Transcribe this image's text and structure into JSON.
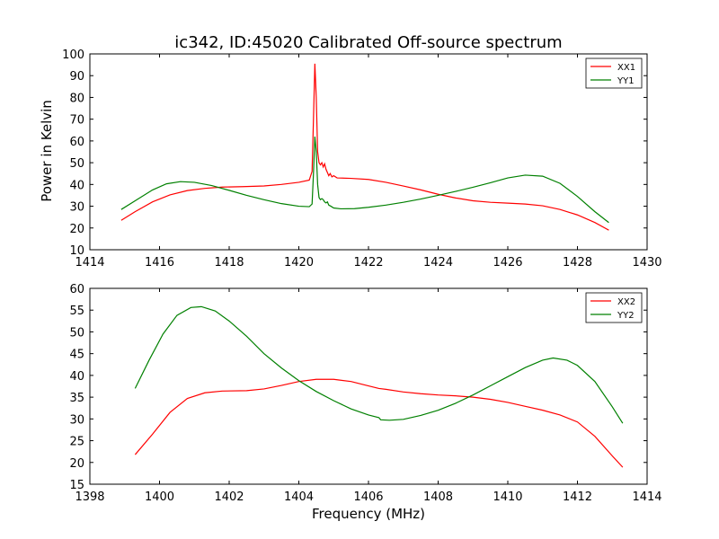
{
  "chart_data": [
    {
      "type": "line",
      "title": "ic342, ID:45020 Calibrated Off-source spectrum",
      "xlabel": "",
      "ylabel": "Power in Kelvin",
      "xlim": [
        1414,
        1430
      ],
      "ylim": [
        10,
        100
      ],
      "xticks": [
        "1414",
        "1416",
        "1418",
        "1420",
        "1422",
        "1424",
        "1426",
        "1428",
        "1430"
      ],
      "yticks": [
        "10",
        "20",
        "30",
        "40",
        "50",
        "60",
        "70",
        "80",
        "90",
        "100"
      ],
      "legend_position": "top-right",
      "grid": false,
      "series": [
        {
          "name": "XX1",
          "color": "#ff0000",
          "points": [
            [
              1414.9,
              23.5
            ],
            [
              1415.3,
              27.5
            ],
            [
              1415.8,
              32
            ],
            [
              1416.3,
              35.2
            ],
            [
              1416.8,
              37.2
            ],
            [
              1417.3,
              38.2
            ],
            [
              1417.8,
              38.8
            ],
            [
              1418.4,
              39.0
            ],
            [
              1419.0,
              39.3
            ],
            [
              1419.5,
              40.0
            ],
            [
              1420.0,
              41.0
            ],
            [
              1420.3,
              42.0
            ],
            [
              1420.38,
              46
            ],
            [
              1420.42,
              70
            ],
            [
              1420.46,
              95.5
            ],
            [
              1420.5,
              80
            ],
            [
              1420.54,
              55
            ],
            [
              1420.58,
              50
            ],
            [
              1420.62,
              49
            ],
            [
              1420.66,
              50
            ],
            [
              1420.7,
              48
            ],
            [
              1420.74,
              49.5
            ],
            [
              1420.78,
              47
            ],
            [
              1420.82,
              45.5
            ],
            [
              1420.86,
              44
            ],
            [
              1420.9,
              45
            ],
            [
              1420.95,
              43.5
            ],
            [
              1421.0,
              44
            ],
            [
              1421.1,
              43
            ],
            [
              1421.5,
              42.8
            ],
            [
              1422.0,
              42.3
            ],
            [
              1422.5,
              41
            ],
            [
              1423.0,
              39.3
            ],
            [
              1423.5,
              37.5
            ],
            [
              1424.0,
              35.5
            ],
            [
              1424.5,
              33.8
            ],
            [
              1425.0,
              32.5
            ],
            [
              1425.5,
              31.8
            ],
            [
              1426.0,
              31.4
            ],
            [
              1426.5,
              31.0
            ],
            [
              1427.0,
              30.2
            ],
            [
              1427.5,
              28.5
            ],
            [
              1428.0,
              26.0
            ],
            [
              1428.5,
              22.5
            ],
            [
              1428.9,
              19.0
            ]
          ]
        },
        {
          "name": "YY1",
          "color": "#008000",
          "points": [
            [
              1414.9,
              28.5
            ],
            [
              1415.3,
              32.5
            ],
            [
              1415.8,
              37.5
            ],
            [
              1416.2,
              40.3
            ],
            [
              1416.6,
              41.3
            ],
            [
              1417.0,
              41.0
            ],
            [
              1417.5,
              39.5
            ],
            [
              1418.0,
              37.3
            ],
            [
              1418.5,
              35
            ],
            [
              1419.0,
              33
            ],
            [
              1419.5,
              31.2
            ],
            [
              1420.0,
              30.0
            ],
            [
              1420.3,
              29.8
            ],
            [
              1420.38,
              31
            ],
            [
              1420.42,
              45
            ],
            [
              1420.46,
              62
            ],
            [
              1420.5,
              55
            ],
            [
              1420.54,
              40
            ],
            [
              1420.58,
              34
            ],
            [
              1420.62,
              33
            ],
            [
              1420.66,
              33.5
            ],
            [
              1420.7,
              33
            ],
            [
              1420.74,
              32
            ],
            [
              1420.78,
              31.5
            ],
            [
              1420.82,
              32
            ],
            [
              1420.86,
              30.5
            ],
            [
              1420.92,
              30
            ],
            [
              1421.0,
              29.2
            ],
            [
              1421.2,
              28.8
            ],
            [
              1421.6,
              28.9
            ],
            [
              1422.0,
              29.5
            ],
            [
              1422.5,
              30.5
            ],
            [
              1423.0,
              31.8
            ],
            [
              1423.5,
              33.3
            ],
            [
              1424.0,
              35.0
            ],
            [
              1424.5,
              36.8
            ],
            [
              1425.0,
              38.7
            ],
            [
              1425.5,
              40.8
            ],
            [
              1426.0,
              43.0
            ],
            [
              1426.5,
              44.3
            ],
            [
              1427.0,
              43.8
            ],
            [
              1427.5,
              40.5
            ],
            [
              1428.0,
              34.5
            ],
            [
              1428.5,
              27.5
            ],
            [
              1428.9,
              22.5
            ]
          ]
        }
      ]
    },
    {
      "type": "line",
      "title": "",
      "xlabel": "Frequency (MHz)",
      "ylabel": "",
      "xlim": [
        1398,
        1414
      ],
      "ylim": [
        15,
        60
      ],
      "xticks": [
        "1398",
        "1400",
        "1402",
        "1404",
        "1406",
        "1408",
        "1410",
        "1412",
        "1414"
      ],
      "yticks": [
        "15",
        "20",
        "25",
        "30",
        "35",
        "40",
        "45",
        "50",
        "55",
        "60"
      ],
      "legend_position": "top-right",
      "grid": false,
      "series": [
        {
          "name": "XX2",
          "color": "#ff0000",
          "points": [
            [
              1399.3,
              21.8
            ],
            [
              1399.8,
              26.5
            ],
            [
              1400.3,
              31.5
            ],
            [
              1400.8,
              34.7
            ],
            [
              1401.3,
              36.0
            ],
            [
              1401.8,
              36.4
            ],
            [
              1402.5,
              36.5
            ],
            [
              1403.0,
              36.9
            ],
            [
              1403.5,
              37.7
            ],
            [
              1404.0,
              38.6
            ],
            [
              1404.5,
              39.1
            ],
            [
              1405.0,
              39.1
            ],
            [
              1405.5,
              38.6
            ],
            [
              1406.0,
              37.6
            ],
            [
              1406.3,
              37.0
            ],
            [
              1406.5,
              36.8
            ],
            [
              1407.0,
              36.2
            ],
            [
              1407.5,
              35.8
            ],
            [
              1408.0,
              35.5
            ],
            [
              1408.5,
              35.3
            ],
            [
              1409.0,
              35.0
            ],
            [
              1409.5,
              34.5
            ],
            [
              1410.0,
              33.8
            ],
            [
              1410.5,
              32.9
            ],
            [
              1411.0,
              32.0
            ],
            [
              1411.5,
              30.9
            ],
            [
              1412.0,
              29.3
            ],
            [
              1412.5,
              26.0
            ],
            [
              1413.0,
              21.5
            ],
            [
              1413.3,
              18.9
            ]
          ]
        },
        {
          "name": "YY2",
          "color": "#008000",
          "points": [
            [
              1399.3,
              37.0
            ],
            [
              1399.7,
              43.5
            ],
            [
              1400.1,
              49.5
            ],
            [
              1400.5,
              53.8
            ],
            [
              1400.9,
              55.6
            ],
            [
              1401.2,
              55.8
            ],
            [
              1401.6,
              54.8
            ],
            [
              1402.0,
              52.5
            ],
            [
              1402.5,
              49.0
            ],
            [
              1403.0,
              45.0
            ],
            [
              1403.5,
              41.7
            ],
            [
              1404.0,
              38.8
            ],
            [
              1404.5,
              36.3
            ],
            [
              1405.0,
              34.2
            ],
            [
              1405.5,
              32.3
            ],
            [
              1406.0,
              30.9
            ],
            [
              1406.3,
              30.3
            ],
            [
              1406.35,
              29.8
            ],
            [
              1406.6,
              29.7
            ],
            [
              1407.0,
              29.9
            ],
            [
              1407.5,
              30.8
            ],
            [
              1408.0,
              32.0
            ],
            [
              1408.5,
              33.6
            ],
            [
              1409.0,
              35.5
            ],
            [
              1409.5,
              37.6
            ],
            [
              1410.0,
              39.7
            ],
            [
              1410.5,
              41.8
            ],
            [
              1411.0,
              43.5
            ],
            [
              1411.3,
              44.0
            ],
            [
              1411.7,
              43.5
            ],
            [
              1412.0,
              42.3
            ],
            [
              1412.5,
              38.6
            ],
            [
              1413.0,
              32.8
            ],
            [
              1413.3,
              29.0
            ]
          ]
        }
      ]
    }
  ]
}
